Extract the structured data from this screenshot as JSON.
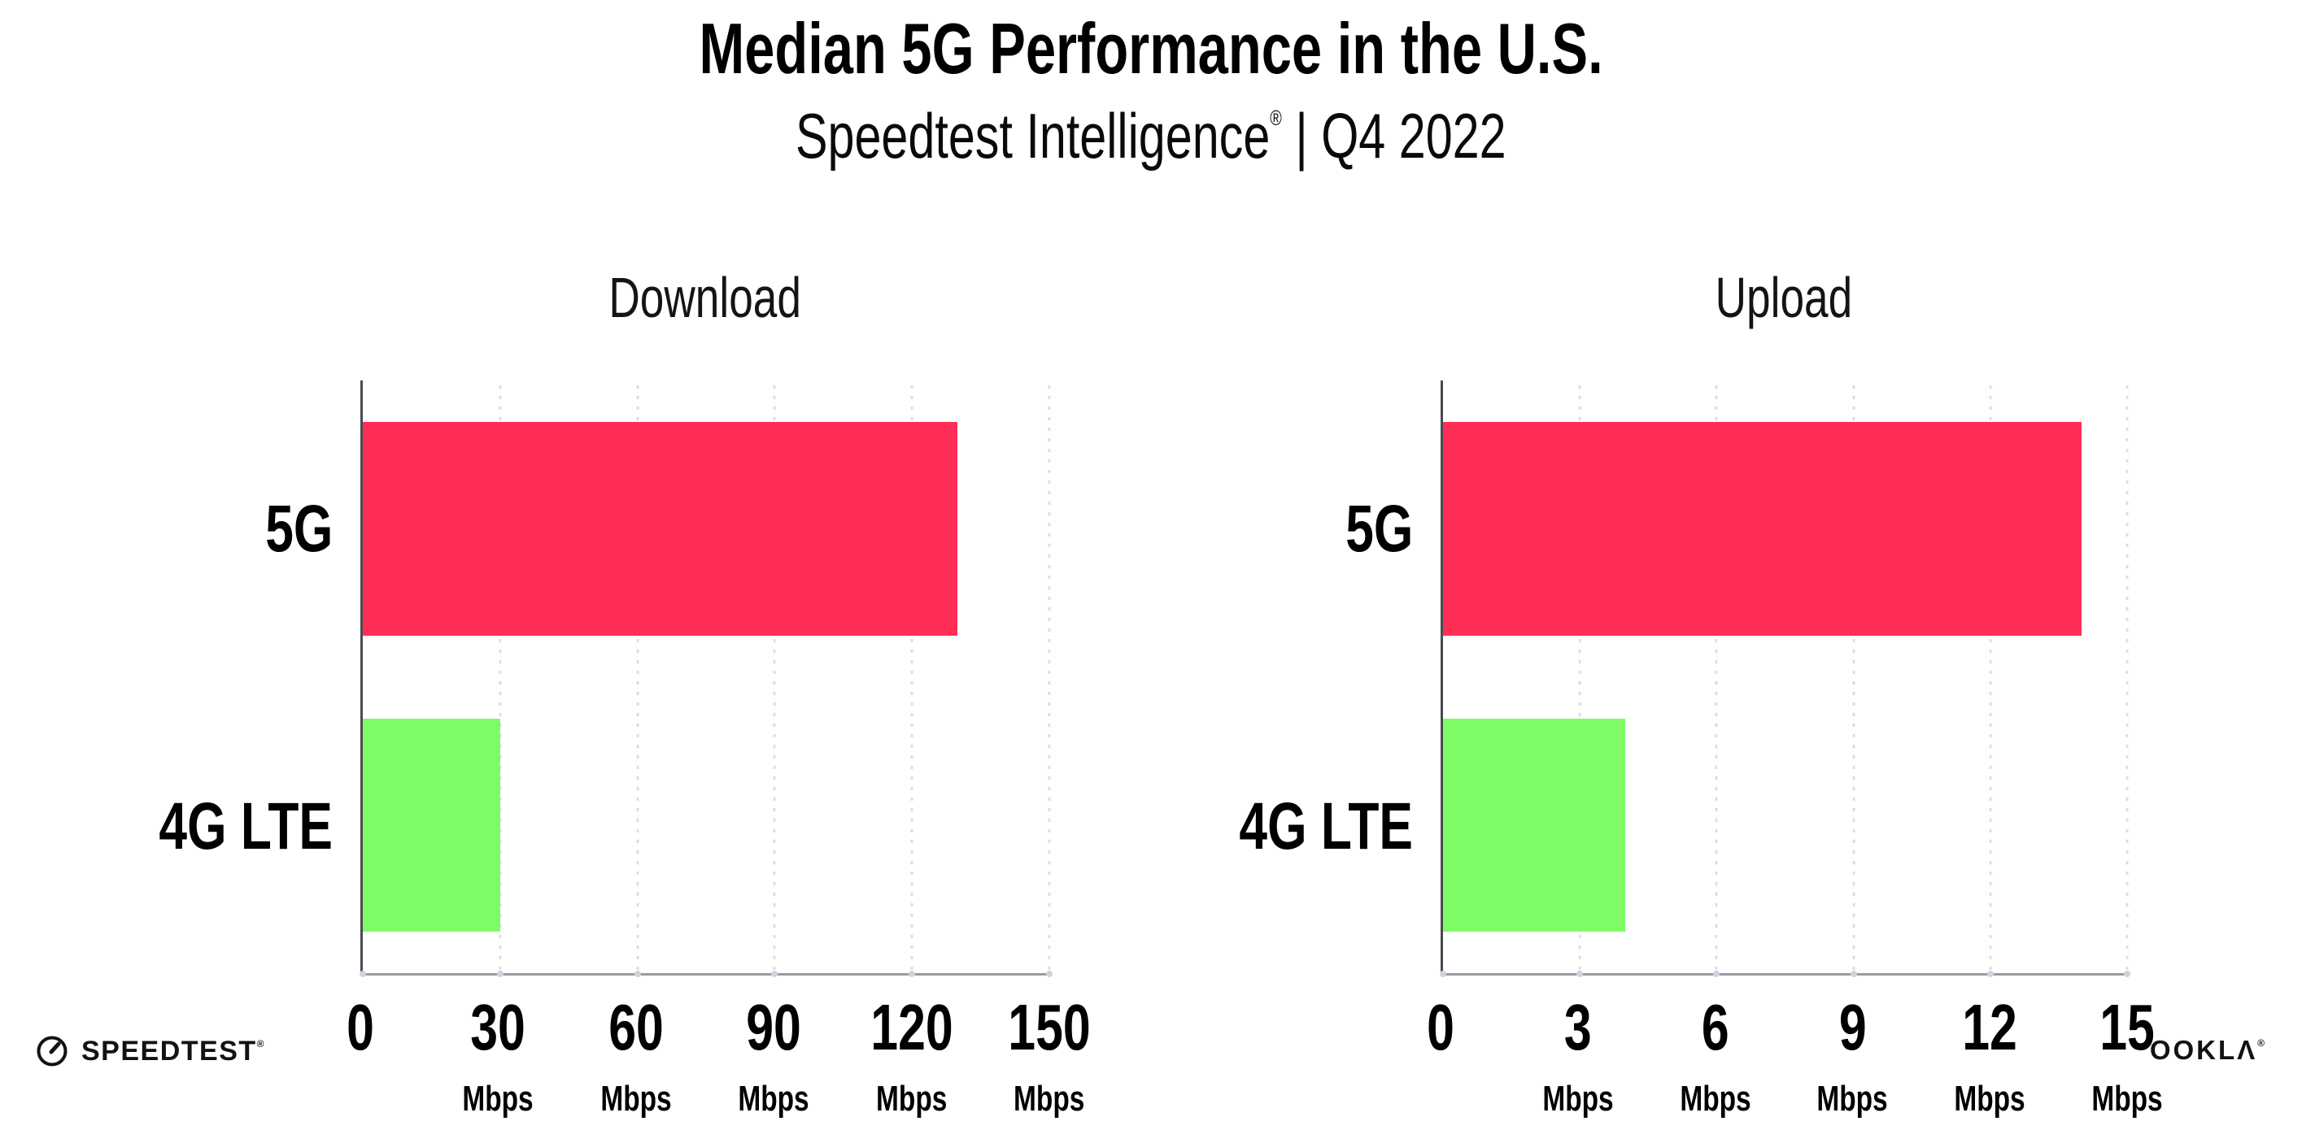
{
  "header": {
    "title": "Median 5G Performance in the U.S.",
    "subtitle": {
      "brand": "Speedtest Intelligence",
      "reg": "®",
      "rest": " | Q4 2022"
    }
  },
  "chart_data": [
    {
      "type": "bar",
      "orientation": "horizontal",
      "title": "Download",
      "categories": [
        "5G",
        "4G LTE"
      ],
      "values": [
        130,
        30
      ],
      "unit": "Mbps",
      "xlim": [
        0,
        150
      ],
      "ticks": [
        0,
        30,
        60,
        90,
        120,
        150
      ],
      "bar_colors": [
        "#FF2E56",
        "#80FC66"
      ],
      "grid": "dotted-vertical",
      "legend": "none"
    },
    {
      "type": "bar",
      "orientation": "horizontal",
      "title": "Upload",
      "categories": [
        "5G",
        "4G LTE"
      ],
      "values": [
        14,
        4
      ],
      "unit": "Mbps",
      "xlim": [
        0,
        15
      ],
      "ticks": [
        0,
        3,
        6,
        9,
        12,
        15
      ],
      "bar_colors": [
        "#FF2E56",
        "#80FC66"
      ],
      "grid": "dotted-vertical",
      "legend": "none"
    }
  ],
  "footer": {
    "speedtest": {
      "label": "SPEEDTEST",
      "mark": "®"
    },
    "ookla": {
      "label": "OOKLΛ",
      "mark": "®"
    }
  },
  "colors": {
    "bar_5g": "#FF2E56",
    "bar_4g_lte": "#80FC66",
    "y_axis_line": "#4a4a52",
    "x_axis_line": "#9a9aa2",
    "gridline": "#dcdce8",
    "text": "#000000"
  }
}
